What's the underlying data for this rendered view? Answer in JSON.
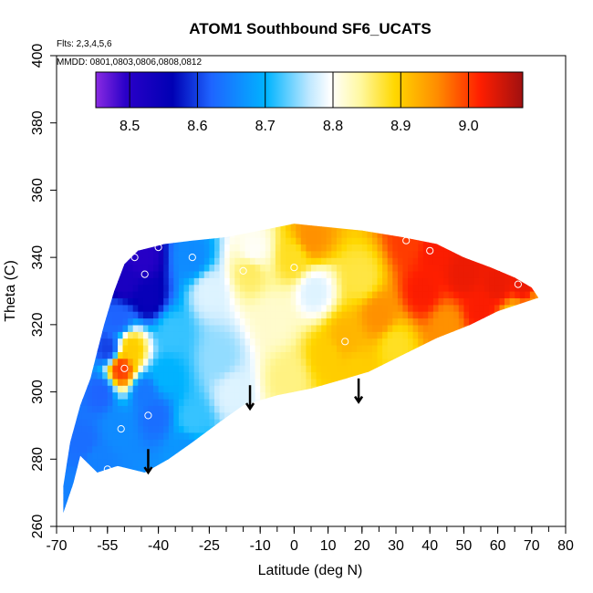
{
  "chart_data": {
    "type": "heatmap",
    "title": "ATOM1 Southbound SF6_UCATS",
    "annotations": {
      "flights": "Flts: 2,3,4,5,6",
      "dates": "MMDD: 0801,0803,0806,0808,0812"
    },
    "xlabel": "Latitude (deg N)",
    "ylabel": "Theta (C)",
    "xlim": [
      -70,
      80
    ],
    "ylim": [
      260,
      400
    ],
    "x_ticks": [
      -70,
      -55,
      -40,
      -25,
      -10,
      0,
      10,
      20,
      30,
      40,
      50,
      60,
      70,
      80
    ],
    "x_tick_labels": [
      "-70",
      "-55",
      "-40",
      "-25",
      "-10",
      "0",
      "10",
      "20",
      "30",
      "40",
      "50",
      "60",
      "70",
      "80"
    ],
    "y_ticks": [
      260,
      280,
      300,
      320,
      340,
      360,
      380,
      400
    ],
    "y_tick_labels": [
      "260",
      "280",
      "300",
      "320",
      "340",
      "360",
      "380",
      "400"
    ],
    "colorbar": {
      "range": [
        8.45,
        9.08
      ],
      "ticks": [
        8.5,
        8.6,
        8.7,
        8.8,
        8.9,
        9.0
      ],
      "tick_labels": [
        "8.5",
        "8.6",
        "8.7",
        "8.8",
        "8.9",
        "9.0"
      ]
    },
    "field_points": [
      {
        "lat": -66,
        "theta": 268,
        "value": 8.65
      },
      {
        "lat": -62,
        "theta": 285,
        "value": 8.63
      },
      {
        "lat": -58,
        "theta": 280,
        "value": 8.65
      },
      {
        "lat": -57,
        "theta": 300,
        "value": 8.62
      },
      {
        "lat": -55,
        "theta": 313,
        "value": 8.6
      },
      {
        "lat": -52,
        "theta": 289,
        "value": 8.66
      },
      {
        "lat": -51,
        "theta": 307,
        "value": 9.0
      },
      {
        "lat": -48,
        "theta": 313,
        "value": 8.9
      },
      {
        "lat": -52,
        "theta": 322,
        "value": 8.62
      },
      {
        "lat": -50,
        "theta": 333,
        "value": 8.52
      },
      {
        "lat": -45,
        "theta": 340,
        "value": 8.5
      },
      {
        "lat": -43,
        "theta": 328,
        "value": 8.55
      },
      {
        "lat": -41,
        "theta": 293,
        "value": 8.63
      },
      {
        "lat": -44,
        "theta": 300,
        "value": 8.64
      },
      {
        "lat": -38,
        "theta": 305,
        "value": 8.7
      },
      {
        "lat": -36,
        "theta": 318,
        "value": 8.72
      },
      {
        "lat": -32,
        "theta": 283,
        "value": 8.67
      },
      {
        "lat": -30,
        "theta": 292,
        "value": 8.72
      },
      {
        "lat": -30,
        "theta": 340,
        "value": 8.66
      },
      {
        "lat": -25,
        "theta": 330,
        "value": 8.78
      },
      {
        "lat": -22,
        "theta": 310,
        "value": 8.75
      },
      {
        "lat": -18,
        "theta": 300,
        "value": 8.78
      },
      {
        "lat": -13,
        "theta": 336,
        "value": 8.86
      },
      {
        "lat": -12,
        "theta": 342,
        "value": 8.8
      },
      {
        "lat": -6,
        "theta": 322,
        "value": 8.82
      },
      {
        "lat": -2,
        "theta": 304,
        "value": 8.85
      },
      {
        "lat": 0,
        "theta": 340,
        "value": 8.88
      },
      {
        "lat": 5,
        "theta": 346,
        "value": 8.95
      },
      {
        "lat": 6,
        "theta": 330,
        "value": 8.78
      },
      {
        "lat": 10,
        "theta": 311,
        "value": 8.9
      },
      {
        "lat": 15,
        "theta": 316,
        "value": 8.92
      },
      {
        "lat": 18,
        "theta": 306,
        "value": 8.9
      },
      {
        "lat": 20,
        "theta": 334,
        "value": 8.87
      },
      {
        "lat": 25,
        "theta": 323,
        "value": 8.95
      },
      {
        "lat": 30,
        "theta": 314,
        "value": 8.88
      },
      {
        "lat": 34,
        "theta": 345,
        "value": 9.0
      },
      {
        "lat": 38,
        "theta": 330,
        "value": 9.02
      },
      {
        "lat": 41,
        "theta": 342,
        "value": 9.02
      },
      {
        "lat": 45,
        "theta": 320,
        "value": 8.95
      },
      {
        "lat": 50,
        "theta": 335,
        "value": 9.03
      },
      {
        "lat": 55,
        "theta": 325,
        "value": 9.02
      },
      {
        "lat": 60,
        "theta": 332,
        "value": 9.03
      },
      {
        "lat": 65,
        "theta": 322,
        "value": 8.9
      },
      {
        "lat": 68,
        "theta": 332,
        "value": 9.03
      },
      {
        "lat": 72,
        "theta": 327,
        "value": 8.95
      }
    ],
    "coverage_boundary": [
      [
        -68,
        264
      ],
      [
        -65,
        273
      ],
      [
        -63,
        281
      ],
      [
        -58,
        276
      ],
      [
        -52,
        278
      ],
      [
        -44,
        276
      ],
      [
        -37,
        280
      ],
      [
        -30,
        285
      ],
      [
        -22,
        291
      ],
      [
        -15,
        296
      ],
      [
        -5,
        299
      ],
      [
        5,
        301
      ],
      [
        12,
        303
      ],
      [
        22,
        306
      ],
      [
        32,
        311
      ],
      [
        42,
        316
      ],
      [
        52,
        320
      ],
      [
        60,
        324
      ],
      [
        66,
        326
      ],
      [
        72,
        328
      ],
      [
        70,
        331
      ],
      [
        65,
        334
      ],
      [
        58,
        337
      ],
      [
        50,
        340
      ],
      [
        42,
        344
      ],
      [
        32,
        346
      ],
      [
        20,
        348
      ],
      [
        10,
        349
      ],
      [
        0,
        350
      ],
      [
        -10,
        348
      ],
      [
        -20,
        346
      ],
      [
        -30,
        345
      ],
      [
        -38,
        344
      ],
      [
        -46,
        342
      ],
      [
        -50,
        338
      ],
      [
        -53,
        330
      ],
      [
        -56,
        320
      ],
      [
        -58,
        312
      ],
      [
        -60,
        304
      ],
      [
        -63,
        296
      ],
      [
        -66,
        285
      ],
      [
        -68,
        272
      ]
    ],
    "sample_circles": [
      {
        "lat": -55,
        "theta": 277
      },
      {
        "lat": -51,
        "theta": 289
      },
      {
        "lat": -50,
        "theta": 307
      },
      {
        "lat": -43,
        "theta": 293
      },
      {
        "lat": -47,
        "theta": 340
      },
      {
        "lat": -44,
        "theta": 335
      },
      {
        "lat": -40,
        "theta": 343
      },
      {
        "lat": -30,
        "theta": 340
      },
      {
        "lat": -15,
        "theta": 336
      },
      {
        "lat": 0,
        "theta": 337
      },
      {
        "lat": 15,
        "theta": 315
      },
      {
        "lat": 33,
        "theta": 345
      },
      {
        "lat": 40,
        "theta": 342
      },
      {
        "lat": 66,
        "theta": 332
      }
    ],
    "markers": [
      {
        "lat": -43,
        "theta_start": 283,
        "theta_end": 276
      },
      {
        "lat": -13,
        "theta_start": 302,
        "theta_end": 295
      },
      {
        "lat": 19,
        "theta_start": 304,
        "theta_end": 297
      }
    ]
  }
}
